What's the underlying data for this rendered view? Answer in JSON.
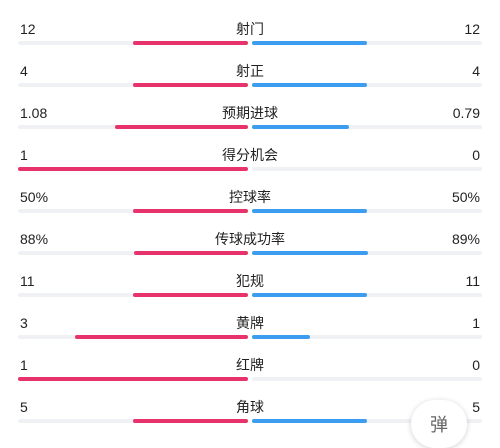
{
  "stats": [
    {
      "label": "射门",
      "left": "12",
      "right": "12",
      "left_ratio": 0.5,
      "right_ratio": 0.5
    },
    {
      "label": "射正",
      "left": "4",
      "right": "4",
      "left_ratio": 0.5,
      "right_ratio": 0.5
    },
    {
      "label": "预期进球",
      "left": "1.08",
      "right": "0.79",
      "left_ratio": 0.578,
      "right_ratio": 0.422
    },
    {
      "label": "得分机会",
      "left": "1",
      "right": "0",
      "left_ratio": 1.0,
      "right_ratio": 0.0
    },
    {
      "label": "控球率",
      "left": "50%",
      "right": "50%",
      "left_ratio": 0.5,
      "right_ratio": 0.5
    },
    {
      "label": "传球成功率",
      "left": "88%",
      "right": "89%",
      "left_ratio": 0.497,
      "right_ratio": 0.503
    },
    {
      "label": "犯规",
      "left": "11",
      "right": "11",
      "left_ratio": 0.5,
      "right_ratio": 0.5
    },
    {
      "label": "黄牌",
      "left": "3",
      "right": "1",
      "left_ratio": 0.75,
      "right_ratio": 0.25
    },
    {
      "label": "红牌",
      "left": "1",
      "right": "0",
      "left_ratio": 1.0,
      "right_ratio": 0.0
    },
    {
      "label": "角球",
      "left": "5",
      "right": "5",
      "left_ratio": 0.5,
      "right_ratio": 0.5
    }
  ],
  "float_button": {
    "label": "弹"
  },
  "colors": {
    "left_bar": "#e8326c",
    "right_bar": "#3b9cf0",
    "track": "#f0f1f4"
  }
}
